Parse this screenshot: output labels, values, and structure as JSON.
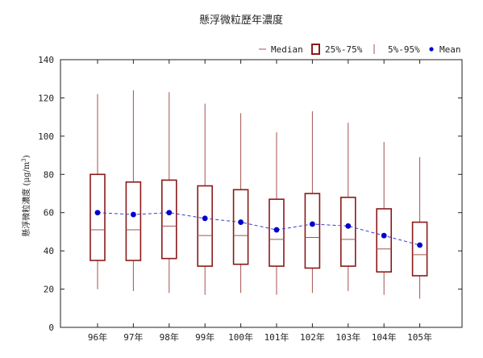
{
  "chart_data": {
    "type": "boxplot",
    "title": "懸浮微粒歷年濃度",
    "ylabel": "懸浮微粒濃度 (μg/m³)",
    "ylabel_parts": {
      "prefix": "懸浮微粒濃度 (μg/m",
      "sup": "3",
      "suffix": ")"
    },
    "xlabel": "",
    "ylim": [
      0,
      140
    ],
    "yticks": [
      0,
      20,
      40,
      60,
      80,
      100,
      120,
      140
    ],
    "ytick_labels": [
      "0",
      "20",
      "40",
      "60",
      "80",
      "100",
      "120",
      "140"
    ],
    "grid": false,
    "legend_position": "top-right",
    "legend": {
      "median": "Median",
      "iqr": "25%-75%",
      "whisker": "5%-95%",
      "mean": "Mean"
    },
    "categories": [
      "96年",
      "97年",
      "98年",
      "99年",
      "100年",
      "101年",
      "102年",
      "103年",
      "104年",
      "105年"
    ],
    "p5": [
      20,
      19,
      18,
      17,
      18,
      17,
      18,
      19,
      17,
      15
    ],
    "q1": [
      35,
      35,
      36,
      32,
      33,
      32,
      31,
      32,
      29,
      27
    ],
    "median": [
      51,
      51,
      53,
      48,
      48,
      46,
      47,
      46,
      41,
      38
    ],
    "q3": [
      80,
      76,
      77,
      74,
      72,
      67,
      70,
      68,
      62,
      55
    ],
    "p95": [
      122,
      124,
      123,
      117,
      112,
      102,
      113,
      107,
      97,
      89
    ],
    "mean": [
      60,
      59,
      60,
      57,
      55,
      51,
      54,
      53,
      48,
      43
    ],
    "colors": {
      "box": "#8b1a1a",
      "whisker": "#a65050",
      "median": "#a65050",
      "mean": "#0000cc",
      "mean_line": "#3a3ad6",
      "axis": "#222222"
    }
  }
}
